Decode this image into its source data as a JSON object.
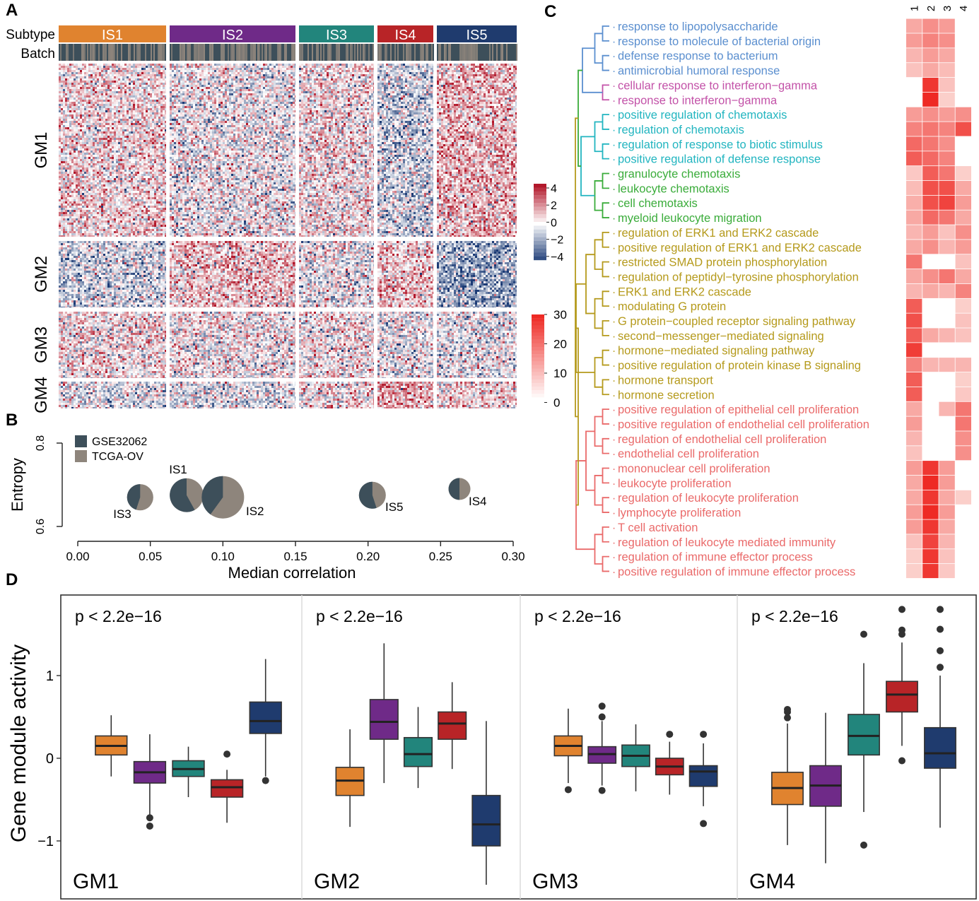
{
  "panels": {
    "a": "A",
    "b": "B",
    "c": "C",
    "d": "D"
  },
  "colors": {
    "IS1": "#e0832f",
    "IS2": "#6f2a88",
    "IS3": "#22857c",
    "IS4": "#b82427",
    "IS5": "#1f3b6e",
    "GSE32062": "#3d4f5a",
    "TCGA-OV": "#8e857c",
    "heat_pos": "#b2182b",
    "heat_neg": "#1b3a75",
    "enrich": "#ee2a24"
  },
  "heatmap": {
    "row_labels": {
      "subtype": "Subtype",
      "batch": "Batch"
    },
    "subtypes": [
      "IS1",
      "IS2",
      "IS3",
      "IS4",
      "IS5"
    ],
    "modules": [
      "GM1",
      "GM2",
      "GM3",
      "GM4"
    ],
    "colorbar_ticks": [
      "4",
      "2",
      "0",
      "−2",
      "−4"
    ],
    "module_pattern": [
      [
        0.55,
        -0.1,
        0.4,
        -0.9,
        1.2
      ],
      [
        -0.8,
        0.9,
        -0.2,
        0.9,
        -1.8
      ],
      [
        0.5,
        0.1,
        0.3,
        -0.2,
        -0.3
      ],
      [
        -0.5,
        -0.4,
        0.5,
        1.3,
        0.6
      ]
    ]
  },
  "chart_data": [
    {
      "panel": "B",
      "type": "scatter",
      "xlabel": "Median correlation",
      "ylabel": "Entropy",
      "xlim": [
        0.0,
        0.3
      ],
      "ylim": [
        0.6,
        0.8
      ],
      "xticks": [
        "0.00",
        "0.05",
        "0.10",
        "0.15",
        "0.20",
        "0.25",
        "0.30"
      ],
      "yticks": [
        "0.6",
        "0.8"
      ],
      "legend": [
        "GSE32062",
        "TCGA-OV"
      ],
      "points": [
        {
          "label": "IS1",
          "x": 0.075,
          "y": 0.675,
          "size": 0.72,
          "gse_fraction": 0.58
        },
        {
          "label": "IS2",
          "x": 0.1,
          "y": 0.67,
          "size": 1.0,
          "gse_fraction": 0.4
        },
        {
          "label": "IS3",
          "x": 0.043,
          "y": 0.67,
          "size": 0.48,
          "gse_fraction": 0.45
        },
        {
          "label": "IS4",
          "x": 0.263,
          "y": 0.69,
          "size": 0.34,
          "gse_fraction": 0.5
        },
        {
          "label": "IS5",
          "x": 0.203,
          "y": 0.675,
          "size": 0.5,
          "gse_fraction": 0.55
        }
      ]
    },
    {
      "panel": "C",
      "type": "heatmap",
      "columns": [
        "1",
        "2",
        "3",
        "4"
      ],
      "colorbar_ticks": [
        "30",
        "20",
        "10",
        "0"
      ],
      "groups": [
        {
          "color": "#5b8fcf",
          "terms": [
            "response to lipopolysaccharide",
            "response to molecule of bacterial origin",
            "defense response to bacterium",
            "antimicrobial humoral response"
          ]
        },
        {
          "color": "#c352a8",
          "terms": [
            "cellular response to interferon−gamma",
            "response to interferon−gamma"
          ]
        },
        {
          "color": "#22b5c0",
          "terms": [
            "positive regulation of chemotaxis",
            "regulation of chemotaxis",
            "regulation of response to biotic stimulus",
            "positive regulation of defense response"
          ]
        },
        {
          "color": "#3aac3a",
          "terms": [
            "granulocyte chemotaxis",
            "leukocyte chemotaxis",
            "cell chemotaxis",
            "myeloid leukocyte migration"
          ]
        },
        {
          "color": "#b59a1c",
          "terms": [
            "regulation of ERK1 and ERK2 cascade",
            "positive regulation of ERK1 and ERK2 cascade",
            "restricted SMAD protein phosphorylation",
            "regulation of peptidyl−tyrosine phosphorylation",
            "ERK1 and ERK2 cascade",
            "modulating G protein",
            "G protein−coupled receptor signaling pathway",
            "second−messenger−mediated signaling",
            "hormone−mediated signaling pathway",
            "positive regulation of protein kinase B signaling",
            "hormone transport",
            "hormone secretion"
          ]
        },
        {
          "color": "#ea6a6a",
          "terms": [
            "positive regulation of epithelial cell proliferation",
            "positive regulation of endothelial cell proliferation",
            "regulation of endothelial cell proliferation",
            "endothelial cell proliferation",
            "mononuclear cell proliferation",
            "leukocyte proliferation",
            "regulation of leukocyte proliferation",
            "lymphocyte proliferation",
            "T cell activation",
            "regulation of leukocyte mediated immunity",
            "regulation of immune effector process",
            "positive regulation of immune effector process"
          ]
        }
      ],
      "values": [
        [
          10,
          14,
          12,
          0
        ],
        [
          12,
          16,
          14,
          0
        ],
        [
          8,
          12,
          10,
          0
        ],
        [
          6,
          10,
          7,
          0
        ],
        [
          0,
          28,
          6,
          0
        ],
        [
          0,
          30,
          4,
          0
        ],
        [
          12,
          14,
          12,
          14
        ],
        [
          16,
          18,
          16,
          24
        ],
        [
          20,
          18,
          14,
          0
        ],
        [
          22,
          20,
          16,
          0
        ],
        [
          5,
          22,
          18,
          4
        ],
        [
          7,
          24,
          24,
          10
        ],
        [
          9,
          24,
          26,
          12
        ],
        [
          10,
          20,
          18,
          10
        ],
        [
          8,
          12,
          6,
          14
        ],
        [
          10,
          14,
          8,
          12
        ],
        [
          18,
          0,
          0,
          6
        ],
        [
          10,
          14,
          18,
          10
        ],
        [
          8,
          10,
          8,
          16
        ],
        [
          22,
          0,
          0,
          4
        ],
        [
          24,
          0,
          0,
          6
        ],
        [
          22,
          10,
          8,
          6
        ],
        [
          27,
          0,
          0,
          0
        ],
        [
          16,
          8,
          8,
          8
        ],
        [
          22,
          0,
          0,
          4
        ],
        [
          22,
          0,
          0,
          5
        ],
        [
          10,
          0,
          8,
          18
        ],
        [
          12,
          0,
          0,
          18
        ],
        [
          8,
          0,
          0,
          14
        ],
        [
          6,
          0,
          0,
          14
        ],
        [
          12,
          28,
          12,
          0
        ],
        [
          10,
          30,
          12,
          0
        ],
        [
          10,
          28,
          10,
          4
        ],
        [
          12,
          30,
          12,
          0
        ],
        [
          12,
          28,
          10,
          0
        ],
        [
          6,
          26,
          8,
          0
        ],
        [
          4,
          28,
          6,
          0
        ],
        [
          4,
          28,
          5,
          0
        ]
      ]
    },
    {
      "panel": "D",
      "type": "box",
      "ylabel": "Gene module activity",
      "ylim": [
        -1.6,
        1.9
      ],
      "yticks": [
        "1",
        "0",
        "−1"
      ],
      "categories": [
        "IS1",
        "IS2",
        "IS3",
        "IS4",
        "IS5"
      ],
      "facets": [
        {
          "name": "GM1",
          "pvalue": "p < 2.2e−16",
          "boxes": [
            {
              "min": -0.22,
              "q1": 0.04,
              "med": 0.15,
              "q3": 0.27,
              "max": 0.52,
              "out": []
            },
            {
              "min": -0.68,
              "q1": -0.3,
              "med": -0.17,
              "q3": -0.04,
              "max": 0.29,
              "out": [
                -0.72,
                -0.82
              ]
            },
            {
              "min": -0.47,
              "q1": -0.22,
              "med": -0.13,
              "q3": -0.03,
              "max": 0.14,
              "out": []
            },
            {
              "min": -0.78,
              "q1": -0.47,
              "med": -0.35,
              "q3": -0.26,
              "max": -0.14,
              "out": [
                0.05
              ]
            },
            {
              "min": -0.22,
              "q1": 0.3,
              "med": 0.45,
              "q3": 0.68,
              "max": 1.2,
              "out": [
                -0.27
              ]
            }
          ]
        },
        {
          "name": "GM2",
          "pvalue": "p < 2.2e−16",
          "boxes": [
            {
              "min": -0.83,
              "q1": -0.45,
              "med": -0.27,
              "q3": -0.11,
              "max": 0.35,
              "out": []
            },
            {
              "min": -0.3,
              "q1": 0.23,
              "med": 0.44,
              "q3": 0.71,
              "max": 1.39,
              "out": []
            },
            {
              "min": -0.36,
              "q1": -0.1,
              "med": 0.05,
              "q3": 0.25,
              "max": 0.62,
              "out": []
            },
            {
              "min": -0.13,
              "q1": 0.23,
              "med": 0.42,
              "q3": 0.56,
              "max": 0.92,
              "out": []
            },
            {
              "min": -1.53,
              "q1": -1.06,
              "med": -0.8,
              "q3": -0.45,
              "max": 0.45,
              "out": []
            }
          ]
        },
        {
          "name": "GM3",
          "pvalue": "p < 2.2e−16",
          "boxes": [
            {
              "min": -0.3,
              "q1": 0.03,
              "med": 0.15,
              "q3": 0.27,
              "max": 0.6,
              "out": [
                -0.38
              ]
            },
            {
              "min": -0.33,
              "q1": -0.06,
              "med": 0.05,
              "q3": 0.14,
              "max": 0.45,
              "out": [
                0.5,
                0.63,
                -0.39
              ]
            },
            {
              "min": -0.4,
              "q1": -0.1,
              "med": 0.03,
              "q3": 0.16,
              "max": 0.41,
              "out": []
            },
            {
              "min": -0.44,
              "q1": -0.2,
              "med": -0.1,
              "q3": 0.0,
              "max": 0.2,
              "out": [
                0.29
              ]
            },
            {
              "min": -0.58,
              "q1": -0.34,
              "med": -0.16,
              "q3": -0.09,
              "max": 0.18,
              "out": [
                0.29,
                -0.79
              ]
            }
          ]
        },
        {
          "name": "GM4",
          "pvalue": "p < 2.2e−16",
          "boxes": [
            {
              "min": -1.05,
              "q1": -0.56,
              "med": -0.36,
              "q3": -0.17,
              "max": 0.42,
              "out": [
                0.49,
                0.56,
                0.59
              ]
            },
            {
              "min": -1.27,
              "q1": -0.58,
              "med": -0.33,
              "q3": -0.09,
              "max": 0.55,
              "out": []
            },
            {
              "min": -0.65,
              "q1": 0.04,
              "med": 0.27,
              "q3": 0.53,
              "max": 1.15,
              "out": [
                1.5,
                -1.05
              ]
            },
            {
              "min": 0.15,
              "q1": 0.56,
              "med": 0.77,
              "q3": 0.93,
              "max": 1.4,
              "out": [
                1.55,
                1.5,
                1.8,
                -0.03
              ]
            },
            {
              "min": -0.84,
              "q1": -0.12,
              "med": 0.06,
              "q3": 0.37,
              "max": 1.0,
              "out": [
                1.1,
                1.3,
                1.56,
                1.8
              ]
            }
          ]
        }
      ]
    }
  ]
}
